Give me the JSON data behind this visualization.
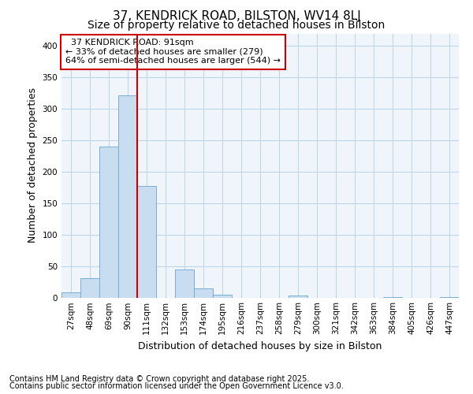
{
  "title": "37, KENDRICK ROAD, BILSTON, WV14 8LJ",
  "subtitle": "Size of property relative to detached houses in Bilston",
  "xlabel": "Distribution of detached houses by size in Bilston",
  "ylabel": "Number of detached properties",
  "bar_color": "#c8ddf0",
  "bar_edgecolor": "#7aadd4",
  "grid_color": "#c0d4e8",
  "background_color": "#ffffff",
  "plot_bg_color": "#f0f5fc",
  "line_color": "#cc0000",
  "annotation_box_color": "#cc0000",
  "annotation_bg": "#ffffff",
  "categories": [
    "27sqm",
    "48sqm",
    "69sqm",
    "90sqm",
    "111sqm",
    "132sqm",
    "153sqm",
    "174sqm",
    "195sqm",
    "216sqm",
    "237sqm",
    "258sqm",
    "279sqm",
    "300sqm",
    "321sqm",
    "342sqm",
    "363sqm",
    "384sqm",
    "405sqm",
    "426sqm",
    "447sqm"
  ],
  "values": [
    8,
    31,
    240,
    321,
    178,
    0,
    45,
    15,
    5,
    0,
    0,
    0,
    3,
    0,
    0,
    0,
    0,
    1,
    0,
    0,
    1
  ],
  "property_label": "37 KENDRICK ROAD: 91sqm",
  "pct_smaller": "33% of detached houses are smaller (279)",
  "pct_larger": "64% of semi-detached houses are larger (544)",
  "vline_pos": 3.5,
  "ylim": [
    0,
    420
  ],
  "yticks": [
    0,
    50,
    100,
    150,
    200,
    250,
    300,
    350,
    400
  ],
  "footer_line1": "Contains HM Land Registry data © Crown copyright and database right 2025.",
  "footer_line2": "Contains public sector information licensed under the Open Government Licence v3.0.",
  "title_fontsize": 11,
  "subtitle_fontsize": 10,
  "axis_label_fontsize": 9,
  "tick_fontsize": 7.5,
  "footer_fontsize": 7,
  "annotation_fontsize": 8
}
